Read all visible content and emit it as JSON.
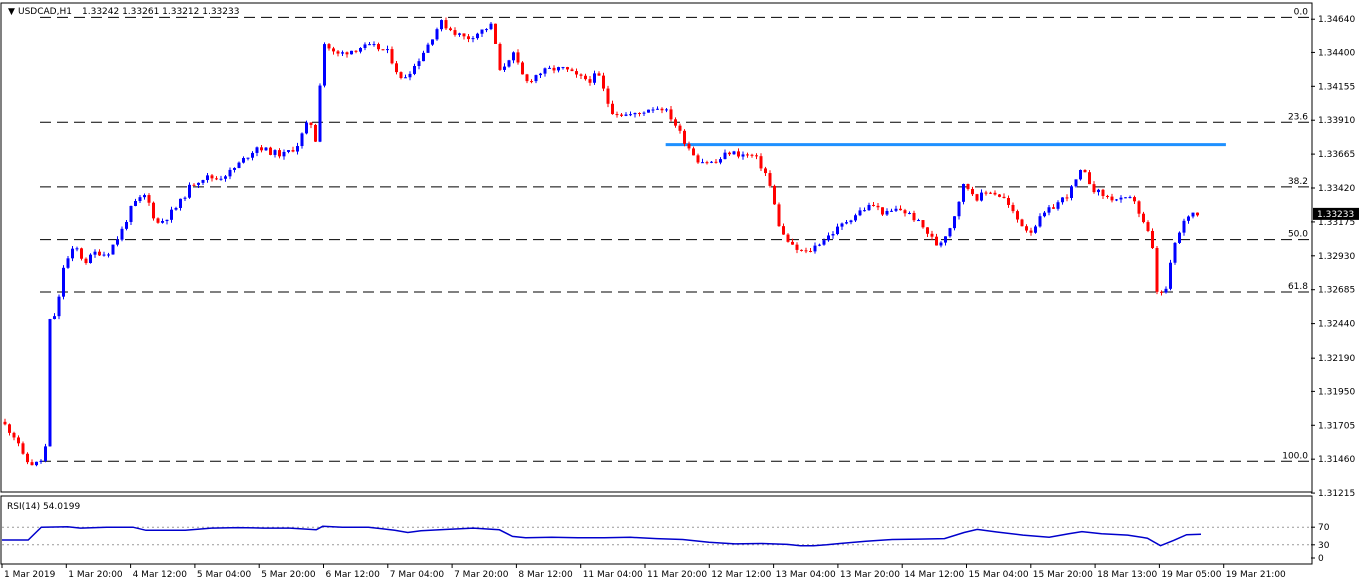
{
  "header": {
    "title": "USDCAD,H1",
    "ohlc": "1.33242 1.33261 1.33212 1.33233"
  },
  "rsi": {
    "label": "RSI(14) 54.0199",
    "levels": [
      70,
      30
    ],
    "scale_labels": [
      "70",
      "30",
      "0"
    ],
    "color": "#0000cc"
  },
  "colors": {
    "up": "#0000ff",
    "down": "#ff0000",
    "resistance": "#1e90ff",
    "fib": "#000000",
    "price_tag_bg": "#000000"
  },
  "chart_data": {
    "type": "candlestick",
    "symbol": "USDCAD",
    "timeframe": "H1",
    "current_price": "1.33233",
    "ylim": [
      1.3123,
      1.3475
    ],
    "price_axis_labels": [
      "1.34640",
      "1.34400",
      "1.34155",
      "1.33910",
      "1.33665",
      "1.33420",
      "1.33175",
      "1.32930",
      "1.32685",
      "1.32440",
      "1.32190",
      "1.31950",
      "1.31705",
      "1.31460",
      "1.31215"
    ],
    "time_labels": [
      "1 Mar 2019",
      "1 Mar 20:00",
      "4 Mar 12:00",
      "5 Mar 04:00",
      "5 Mar 20:00",
      "6 Mar 12:00",
      "7 Mar 04:00",
      "7 Mar 20:00",
      "8 Mar 12:00",
      "11 Mar 04:00",
      "11 Mar 20:00",
      "12 Mar 12:00",
      "13 Mar 04:00",
      "13 Mar 20:00",
      "14 Mar 12:00",
      "15 Mar 04:00",
      "15 Mar 20:00",
      "18 Mar 13:00",
      "19 Mar 05:00",
      "19 Mar 21:00"
    ],
    "fibonacci": [
      {
        "label": "0.0",
        "price": 1.34653
      },
      {
        "label": "23.6",
        "price": 1.33895
      },
      {
        "label": "38.2",
        "price": 1.33428
      },
      {
        "label": "50.0",
        "price": 1.33047
      },
      {
        "label": "61.8",
        "price": 1.32668
      },
      {
        "label": "100.0",
        "price": 1.31445
      }
    ],
    "resistance": {
      "price": 1.33734,
      "from": 0.507,
      "to": 0.935
    },
    "price_path": [
      [
        0,
        1.3173
      ],
      [
        0.012,
        1.316
      ],
      [
        0.017,
        1.3145
      ],
      [
        0.025,
        1.3142
      ],
      [
        0.033,
        1.3147
      ],
      [
        0.036,
        1.3245
      ],
      [
        0.042,
        1.3252
      ],
      [
        0.047,
        1.3285
      ],
      [
        0.056,
        1.33
      ],
      [
        0.063,
        1.3288
      ],
      [
        0.072,
        1.3296
      ],
      [
        0.08,
        1.3294
      ],
      [
        0.09,
        1.3308
      ],
      [
        0.1,
        1.333
      ],
      [
        0.11,
        1.3337
      ],
      [
        0.118,
        1.3316
      ],
      [
        0.125,
        1.332
      ],
      [
        0.135,
        1.333
      ],
      [
        0.145,
        1.3345
      ],
      [
        0.155,
        1.335
      ],
      [
        0.165,
        1.3349
      ],
      [
        0.175,
        1.3354
      ],
      [
        0.185,
        1.3363
      ],
      [
        0.195,
        1.3372
      ],
      [
        0.205,
        1.3368
      ],
      [
        0.215,
        1.3366
      ],
      [
        0.225,
        1.3372
      ],
      [
        0.235,
        1.3392
      ],
      [
        0.24,
        1.3375
      ],
      [
        0.245,
        1.3448
      ],
      [
        0.255,
        1.3438
      ],
      [
        0.265,
        1.3441
      ],
      [
        0.275,
        1.3444
      ],
      [
        0.285,
        1.3444
      ],
      [
        0.295,
        1.344
      ],
      [
        0.305,
        1.342
      ],
      [
        0.315,
        1.343
      ],
      [
        0.325,
        1.3445
      ],
      [
        0.335,
        1.3462
      ],
      [
        0.345,
        1.3455
      ],
      [
        0.355,
        1.345
      ],
      [
        0.365,
        1.3455
      ],
      [
        0.375,
        1.346
      ],
      [
        0.38,
        1.3425
      ],
      [
        0.39,
        1.344
      ],
      [
        0.4,
        1.3418
      ],
      [
        0.41,
        1.3425
      ],
      [
        0.42,
        1.3428
      ],
      [
        0.43,
        1.3428
      ],
      [
        0.44,
        1.3422
      ],
      [
        0.45,
        1.342
      ],
      [
        0.455,
        1.3425
      ],
      [
        0.465,
        1.3398
      ],
      [
        0.475,
        1.3395
      ],
      [
        0.485,
        1.3395
      ],
      [
        0.495,
        1.34
      ],
      [
        0.505,
        1.34
      ],
      [
        0.512,
        1.3392
      ],
      [
        0.522,
        1.3375
      ],
      [
        0.532,
        1.3362
      ],
      [
        0.545,
        1.336
      ],
      [
        0.555,
        1.3368
      ],
      [
        0.565,
        1.3366
      ],
      [
        0.575,
        1.3365
      ],
      [
        0.585,
        1.335
      ],
      [
        0.595,
        1.331
      ],
      [
        0.605,
        1.3298
      ],
      [
        0.615,
        1.3295
      ],
      [
        0.625,
        1.3303
      ],
      [
        0.635,
        1.331
      ],
      [
        0.645,
        1.3318
      ],
      [
        0.655,
        1.3325
      ],
      [
        0.665,
        1.333
      ],
      [
        0.675,
        1.3323
      ],
      [
        0.685,
        1.3327
      ],
      [
        0.695,
        1.3322
      ],
      [
        0.705,
        1.3312
      ],
      [
        0.715,
        1.33
      ],
      [
        0.725,
        1.3315
      ],
      [
        0.735,
        1.3345
      ],
      [
        0.745,
        1.3335
      ],
      [
        0.755,
        1.334
      ],
      [
        0.765,
        1.3335
      ],
      [
        0.775,
        1.332
      ],
      [
        0.785,
        1.331
      ],
      [
        0.795,
        1.3322
      ],
      [
        0.805,
        1.333
      ],
      [
        0.815,
        1.3338
      ],
      [
        0.825,
        1.3355
      ],
      [
        0.835,
        1.334
      ],
      [
        0.845,
        1.3335
      ],
      [
        0.855,
        1.3333
      ],
      [
        0.865,
        1.3334
      ],
      [
        0.87,
        1.332
      ],
      [
        0.878,
        1.3305
      ],
      [
        0.883,
        1.3262
      ],
      [
        0.89,
        1.327
      ],
      [
        0.895,
        1.33
      ],
      [
        0.9,
        1.331
      ],
      [
        0.905,
        1.3322
      ],
      [
        0.912,
        1.3325
      ],
      [
        0.916,
        1.3323
      ]
    ],
    "rsi_path": [
      [
        0,
        41
      ],
      [
        0.02,
        41
      ],
      [
        0.03,
        70
      ],
      [
        0.05,
        71
      ],
      [
        0.06,
        68
      ],
      [
        0.08,
        70
      ],
      [
        0.1,
        70
      ],
      [
        0.11,
        63
      ],
      [
        0.125,
        63
      ],
      [
        0.14,
        63
      ],
      [
        0.16,
        68
      ],
      [
        0.18,
        69
      ],
      [
        0.2,
        68
      ],
      [
        0.22,
        68
      ],
      [
        0.24,
        64
      ],
      [
        0.245,
        72
      ],
      [
        0.26,
        70
      ],
      [
        0.28,
        70
      ],
      [
        0.3,
        63
      ],
      [
        0.31,
        58
      ],
      [
        0.32,
        62
      ],
      [
        0.34,
        65
      ],
      [
        0.36,
        68
      ],
      [
        0.38,
        64
      ],
      [
        0.39,
        49
      ],
      [
        0.4,
        46
      ],
      [
        0.42,
        47
      ],
      [
        0.44,
        46
      ],
      [
        0.46,
        46
      ],
      [
        0.48,
        47
      ],
      [
        0.5,
        44
      ],
      [
        0.52,
        42
      ],
      [
        0.54,
        36
      ],
      [
        0.56,
        32
      ],
      [
        0.58,
        33
      ],
      [
        0.6,
        31
      ],
      [
        0.61,
        28
      ],
      [
        0.62,
        28
      ],
      [
        0.63,
        30
      ],
      [
        0.64,
        33
      ],
      [
        0.66,
        38
      ],
      [
        0.68,
        42
      ],
      [
        0.7,
        43
      ],
      [
        0.72,
        44
      ],
      [
        0.735,
        58
      ],
      [
        0.745,
        65
      ],
      [
        0.76,
        59
      ],
      [
        0.78,
        52
      ],
      [
        0.8,
        47
      ],
      [
        0.815,
        55
      ],
      [
        0.825,
        60
      ],
      [
        0.84,
        55
      ],
      [
        0.86,
        52
      ],
      [
        0.875,
        45
      ],
      [
        0.885,
        28
      ],
      [
        0.895,
        40
      ],
      [
        0.905,
        53
      ],
      [
        0.916,
        54
      ]
    ]
  }
}
